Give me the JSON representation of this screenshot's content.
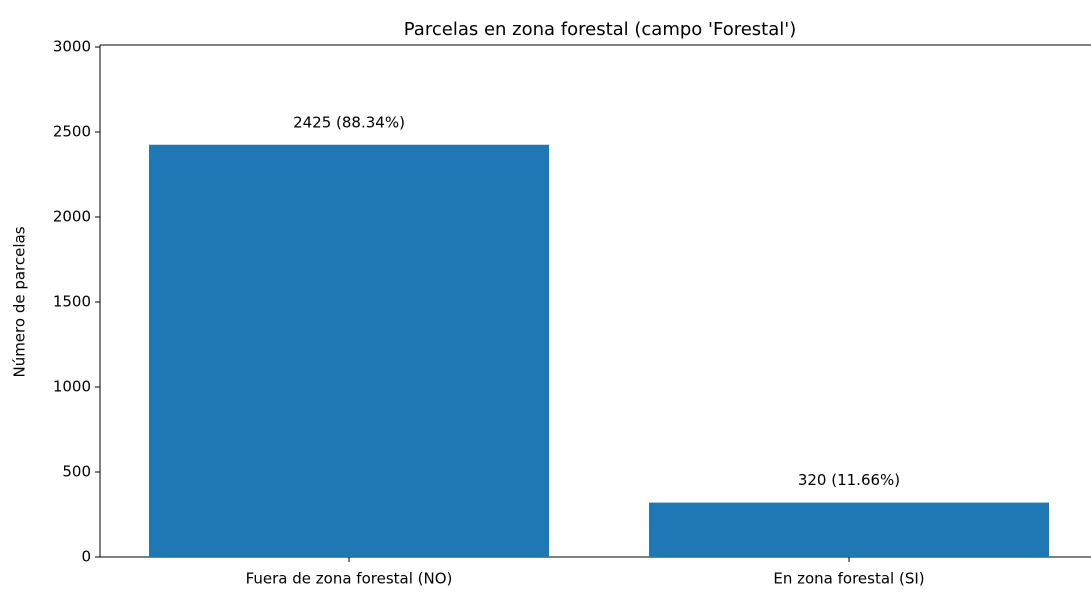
{
  "chart_data": {
    "type": "bar",
    "title": "Parcelas en zona forestal (campo 'Forestal')",
    "ylabel": "Número de parcelas",
    "categories": [
      "Fuera de zona forestal (NO)",
      "En zona forestal (SI)"
    ],
    "values": [
      2425,
      320
    ],
    "value_labels": [
      "2425 (88.34%)",
      "320 (11.66%)"
    ],
    "color": "#1f77b4",
    "ylim": [
      0,
      3000
    ],
    "yticks": [
      0,
      500,
      1000,
      1500,
      2000,
      2500,
      3000
    ],
    "grid": false
  }
}
